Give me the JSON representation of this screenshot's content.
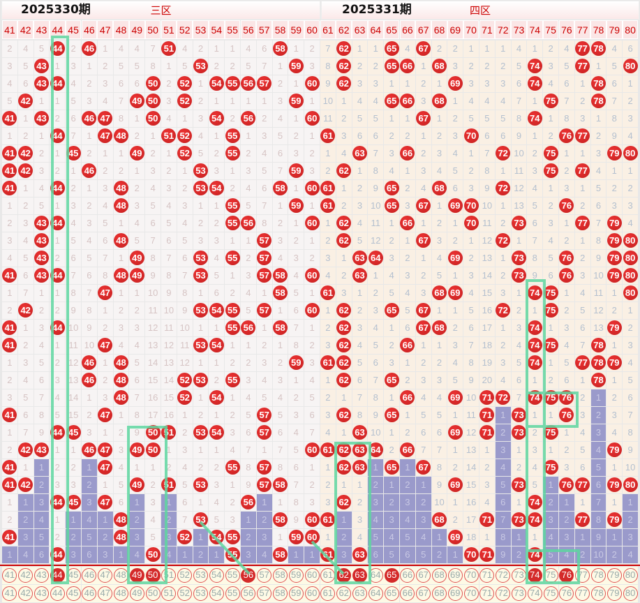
{
  "zones": [
    "三区",
    "四区"
  ],
  "columns": [
    41,
    42,
    43,
    44,
    45,
    46,
    47,
    48,
    49,
    50,
    51,
    52,
    53,
    54,
    55,
    56,
    57,
    58,
    59,
    60,
    61,
    62,
    63,
    64,
    65,
    66,
    67,
    68,
    69,
    70,
    71,
    72,
    73,
    74,
    75,
    76,
    77,
    78,
    79,
    80
  ],
  "legend": {
    "hit": "H = drawn number",
    "purple": "P = consecutive-miss bar"
  },
  "rows": [
    "2 4 5 H44 2 H46 1 4 4 7 H51 4 2 1 1 4 6 H58 1 2 7 H62 1 1 H65 4 H67 2 2 1 1 1 4 1 2 4 H77 H78 4 6",
    "3 5 H43 1 3 1 2 5 5 8 1 5 H53 2 2 5 7 1 H59 3 8 H62 2 2 H65 H66 1 H68 3 2 2 2 5 H74 3 5 H77 1 5 H80",
    "4 6 H43 H44 4 2 3 6 6 H50 2 H52 1 H54 H55 H56 H57 2 1 H60 9 H62 3 3 1 1 2 1 H69 3 3 3 6 H74 4 6 1 H78 6 1",
    "5 H42 1 1 5 3 4 7 H49 H50 3 H52 2 1 1 1 1 3 H59 1 10 1 4 4 H65 H66 3 H68 1 4 4 4 7 1 H75 7 2 H78 7 2",
    "H41 1 H43 2 6 H46 H47 8 1 H50 4 1 3 H54 2 H56 2 4 1 H60 11 2 5 5 1 1 H67 1 2 5 5 5 8 H74 1 8 3 1 8 3",
    "1 2 1 H44 7 1 H47 H48 2 1 H51 H52 4 1 H55 1 3 5 2 1 H61 3 6 6 2 2 1 2 3 H70 6 6 9 1 2 H76 H77 2 9 4",
    "H41 H42 2 1 H45 2 1 1 H49 2 1 H52 5 2 H55 2 4 6 3 2 1 4 H63 7 3 H66 2 3 4 1 7 H72 10 2 H75 1 1 3 H79 H80",
    "H41 H42 3 2 1 H46 2 2 1 3 2 1 H53 3 1 3 5 7 H59 3 2 H62 1 8 4 1 3 4 5 2 8 1 11 3 H75 2 H77 4 1 1",
    "H41 1 4 H44 2 1 3 H48 2 4 3 2 H53 H54 2 4 6 H58 1 H60 H61 1 2 9 H65 2 4 H68 6 3 9 H72 12 4 1 3 1 5 2 2",
    "1 2 5 1 3 2 4 H48 3 5 4 3 1 1 H55 5 7 1 H59 1 H61 2 3 10 H65 3 H67 1 H69 H70 10 1 13 5 2 H76 2 6 3 3",
    "2 3 H43 H44 4 3 5 1 4 6 5 4 2 2 H55 H56 8 2 1 H60 1 H62 4 11 1 H66 1 2 1 H70 11 2 H73 6 3 1 H77 7 H79 4",
    "3 4 H43 1 5 4 6 H48 5 7 6 5 3 3 1 1 H57 3 2 1 2 H62 5 12 2 1 H67 3 2 1 12 H72 1 7 4 2 1 8 H79 H80",
    "4 5 H43 2 6 5 7 1 H49 8 7 6 H53 4 H55 2 H57 4 3 2 3 1 H63 H64 3 2 1 4 H69 2 13 1 H73 8 5 H76 2 9 H79 H80",
    "H41 6 H43 H44 7 6 8 H48 H49 9 8 7 H53 5 1 3 H57 H58 4 H60 4 2 H63 1 4 3 2 5 1 3 14 2 H73 9 6 H76 3 10 H79 H80",
    "1 7 1 1 8 7 H47 1 1 10 9 8 1 6 2 4 1 H58 5 1 H61 3 1 2 5 4 3 H68 H69 4 15 3 1 H74 H75 1 4 11 1 H80",
    "2 H42 2 2 9 8 1 2 2 11 10 9 H53 H54 H55 5 H57 1 6 H60 1 H62 2 3 H65 5 H67 1 1 5 16 H72 2 1 H75 2 5 12 2 1",
    "H41 1 3 H44 10 9 2 3 3 12 11 10 1 1 H55 H56 1 H58 7 1 2 H62 3 4 1 6 H67 H68 2 6 17 1 3 H74 1 3 6 13 H79 2",
    "H41 2 4 1 11 10 H47 4 4 13 12 11 H53 H54 1 1 2 1 8 2 3 H62 4 5 2 H66 1 1 3 7 18 2 4 H74 H75 4 7 H78 1 3",
    "1 3 5 2 12 H46 1 H48 5 14 13 12 1 1 2 2 3 2 H59 3 H61 H62 5 6 3 1 2 2 4 8 19 3 5 H74 1 5 H77 H78 H79 4",
    "2 4 6 3 13 H46 2 H48 6 15 14 H52 H53 2 H55 3 4 3 1 4 1 H62 6 7 H65 2 3 3 5 9 20 4 6 1 2 6 1 H78 1 5",
    "3 5 7 4 14 1 3 H48 7 16 15 H52 1 H54 1 4 5 4 2 5 2 1 7 8 1 H66 4 4 H69 10 H71 H72 7 H74 H75 H76 2 P1 2 6",
    "H41 6 8 5 15 2 H47 1 8 17 16 1 2 1 2 5 H57 5 3 6 3 H62 8 9 H65 1 5 5 1 11 H71 P1 H73 1 1 H76 3 P2 3 7",
    "1 7 9 H44 H45 3 1 2 9 H50 H51 2 H53 H54 3 6 H57 6 4 7 4 1 H63 10 1 2 6 6 H69 12 H71 P2 H73 2 H75 1 4 P3 4 8",
    "2 H42 H43 1 1 H46 H47 3 H49 H50 1 3 1 1 4 7 1 7 5 H60 H61 H62 H63 H64 2 H66 7 7 1 13 1 P3 1 3 1 2 5 P4 H79 9",
    "H41 1 P1 2 2 P1 H47 4 1 1 2 4 2 2 H55 8 H57 8 6 1 1 H62 H63 P1 H65 P1 H67 8 2 14 2 P4 2 4 H75 3 6 P5 1 10",
    "H41 H42 P2 3 3 P2 1 5 H49 2 H51 5 H53 3 1 9 H57 H58 7 2 2 1 1 P2 P1 P2 P1 9 H69 15 3 P5 H73 5 P1 H76 H77 P6 H79 H80",
    "1 P1 P3 H44 H45 P3 H47 6 P1 3 P1 6 1 4 2 H56 P1 1 8 3 3 H62 2 P3 P2 P3 P2 10 1 16 4 P6 1 H74 P2 P1 1 P7 1 P1",
    "2 P2 P4 1 P1 P4 P1 H48 P2 4 P2 7 H53 5 3 P1 P2 H58 9 H60 H61 P1 3 P4 P3 P4 P3 H68 2 17 H71 P7 H73 H74 P3 P2 H77 P8 H79 P2",
    "H41 P3 P5 2 P2 P5 P2 H48 P3 5 P3 H52 P1 H54 H55 P2 P3 1 H59 H60 1 P2 4 P5 P4 P5 P4 P1 H69 18 1 P8 P1 1 P4 P3 P1 P9 P1 P3",
    "P1 P4 P6 H44 P3 P6 P3 P1 P4 H50 P4 P1 P2 P1 H55 P3 P4 H58 P1 P1 H61 P3 H63 P6 P5 P6 P5 P2 P1 H70 H71 P9 P2 H74 P5 P4 P2 P10 P2 P4"
  ],
  "footer_draw": [
    44,
    49,
    50,
    56,
    62,
    63,
    65,
    74,
    76
  ],
  "issue_labels": [
    "2025330期",
    "2025331期"
  ]
}
